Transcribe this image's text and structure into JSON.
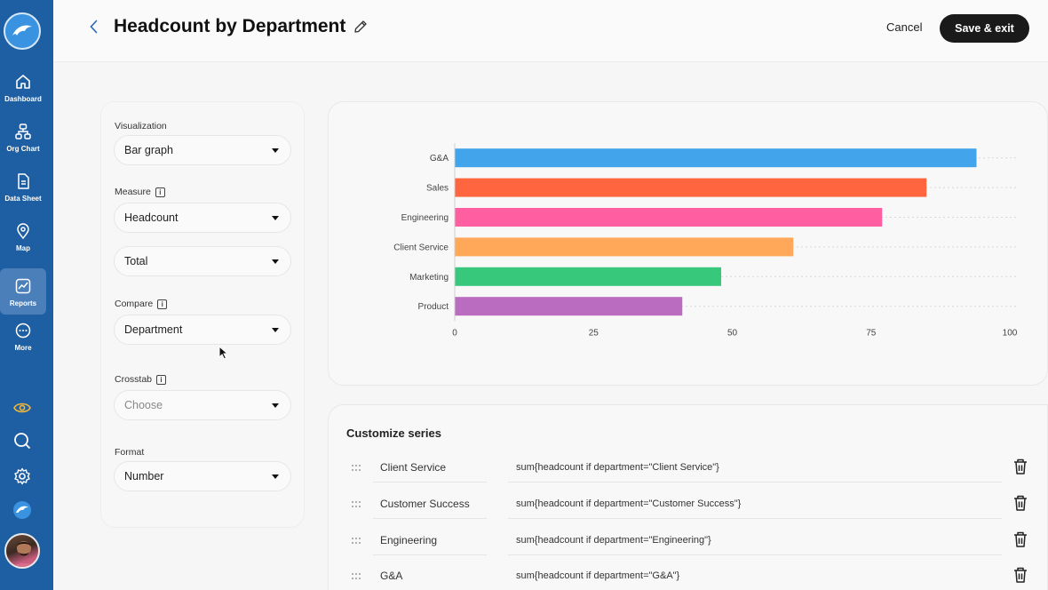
{
  "sidebar": {
    "items": [
      {
        "label": "Dashboard",
        "icon": "home-icon"
      },
      {
        "label": "Org Chart",
        "icon": "org-chart-icon"
      },
      {
        "label": "Data Sheet",
        "icon": "document-icon"
      },
      {
        "label": "Map",
        "icon": "map-pin-icon"
      },
      {
        "label": "Reports",
        "icon": "reports-icon",
        "active": true
      },
      {
        "label": "More",
        "icon": "more-icon"
      }
    ],
    "bottom_icons": [
      "eye-icon",
      "search-icon",
      "gear-icon",
      "dolphin-icon",
      "avatar"
    ]
  },
  "header": {
    "title": "Headcount by Department",
    "cancel_label": "Cancel",
    "save_label": "Save & exit"
  },
  "settings": {
    "visualization": {
      "label": "Visualization",
      "value": "Bar graph"
    },
    "measure": {
      "label": "Measure",
      "value": "Headcount",
      "aggregate": "Total"
    },
    "compare": {
      "label": "Compare",
      "value": "Department"
    },
    "crosstab": {
      "label": "Crosstab",
      "placeholder": "Choose"
    },
    "format": {
      "label": "Format",
      "value": "Number"
    }
  },
  "chart_data": {
    "type": "bar",
    "orientation": "horizontal",
    "categories": [
      "G&A",
      "Sales",
      "Engineering",
      "Client Service",
      "Marketing",
      "Product"
    ],
    "values": [
      94,
      85,
      77,
      61,
      48,
      41
    ],
    "colors": [
      "#42a4ea",
      "#ff6640",
      "#ff5fa0",
      "#ffa85a",
      "#38c87c",
      "#b96cc0"
    ],
    "xlim": [
      0,
      100
    ],
    "xticks": [
      0,
      25,
      50,
      75,
      100
    ],
    "grid": true
  },
  "series": {
    "title": "Customize series",
    "rows": [
      {
        "name": "Client Service",
        "formula": "sum{headcount if department=\"Client Service\"}"
      },
      {
        "name": "Customer Success",
        "formula": "sum{headcount if department=\"Customer Success\"}"
      },
      {
        "name": "Engineering",
        "formula": "sum{headcount if department=\"Engineering\"}"
      },
      {
        "name": "G&A",
        "formula": "sum{headcount if department=\"G&A\"}"
      }
    ]
  }
}
